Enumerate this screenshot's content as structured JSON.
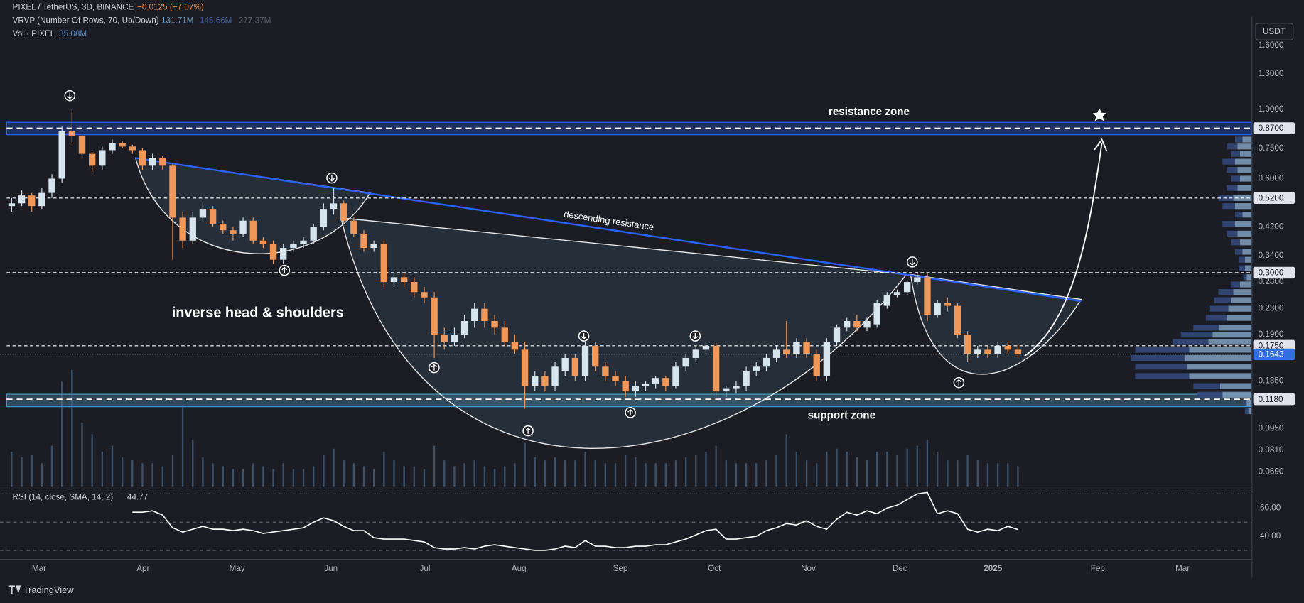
{
  "chart_data": {
    "type": "candlestick",
    "legend": {
      "symbol": "PIXEL / TetherUS, 3D, BINANCE",
      "change": "−0.0125 (−7.07%)",
      "vrvp": "VRVP (Number Of Rows, 70, Up/Down)",
      "vrvp_values": [
        "131.71M",
        "145.66M",
        "277.37M"
      ],
      "vol": "Vol · PIXEL",
      "vol_value": "35.08M"
    },
    "currency": "USDT",
    "log_scale": true,
    "ylim": [
      0.062,
      1.98
    ],
    "yticks": [
      {
        "value": 1.6,
        "label": "1.6000"
      },
      {
        "value": 1.3,
        "label": "1.3000"
      },
      {
        "value": 1.0,
        "label": "1.0000"
      },
      {
        "value": 0.75,
        "label": "0.7500"
      },
      {
        "value": 0.6,
        "label": "0.6000"
      },
      {
        "value": 0.42,
        "label": "0.4200"
      },
      {
        "value": 0.34,
        "label": "0.3400"
      },
      {
        "value": 0.28,
        "label": "0.2800"
      },
      {
        "value": 0.23,
        "label": "0.2300"
      },
      {
        "value": 0.19,
        "label": "0.1900"
      },
      {
        "value": 0.135,
        "label": "0.1350"
      },
      {
        "value": 0.095,
        "label": "0.0950"
      },
      {
        "value": 0.081,
        "label": "0.0810"
      },
      {
        "value": 0.069,
        "label": "0.0690"
      }
    ],
    "levels": [
      {
        "value": 0.87,
        "label": "0.8700"
      },
      {
        "value": 0.52,
        "label": "0.5200"
      },
      {
        "value": 0.3,
        "label": "0.3000"
      },
      {
        "value": 0.175,
        "label": "0.1750"
      },
      {
        "value": 0.118,
        "label": "0.1180"
      }
    ],
    "last_price": {
      "value": 0.1643,
      "label": "0.1643"
    },
    "up_color": "#d6e4ee",
    "down_color": "#f0975a",
    "volume_color": "#5a7aa0",
    "open": [
      0.49,
      0.5,
      0.53,
      0.49,
      0.54,
      0.6,
      0.85,
      0.82,
      0.72,
      0.66,
      0.74,
      0.78,
      0.76,
      0.74,
      0.66,
      0.7,
      0.66,
      0.45,
      0.38,
      0.45,
      0.48,
      0.43,
      0.41,
      0.4,
      0.44,
      0.38,
      0.37,
      0.33,
      0.36,
      0.37,
      0.38,
      0.42,
      0.48,
      0.5,
      0.44,
      0.4,
      0.36,
      0.37,
      0.28,
      0.29,
      0.28,
      0.26,
      0.25,
      0.19,
      0.18,
      0.19,
      0.21,
      0.23,
      0.21,
      0.2,
      0.18,
      0.17,
      0.13,
      0.14,
      0.13,
      0.145,
      0.16,
      0.14,
      0.175,
      0.15,
      0.14,
      0.135,
      0.125,
      0.13,
      0.132,
      0.138,
      0.13,
      0.15,
      0.16,
      0.17,
      0.175,
      0.125,
      0.128,
      0.13,
      0.145,
      0.15,
      0.16,
      0.17,
      0.165,
      0.18,
      0.165,
      0.14,
      0.18,
      0.2,
      0.21,
      0.2,
      0.205,
      0.235,
      0.255,
      0.26,
      0.28,
      0.29,
      0.22,
      0.24,
      0.235,
      0.19,
      0.165,
      0.17,
      0.165,
      0.175,
      0.17
    ],
    "high": [
      0.52,
      0.55,
      0.54,
      0.56,
      0.62,
      0.88,
      1.0,
      0.84,
      0.73,
      0.76,
      0.8,
      0.79,
      0.77,
      0.75,
      0.72,
      0.71,
      0.67,
      0.47,
      0.47,
      0.5,
      0.49,
      0.44,
      0.42,
      0.45,
      0.45,
      0.39,
      0.38,
      0.37,
      0.38,
      0.39,
      0.43,
      0.5,
      0.56,
      0.51,
      0.45,
      0.41,
      0.38,
      0.38,
      0.3,
      0.3,
      0.29,
      0.27,
      0.26,
      0.2,
      0.2,
      0.22,
      0.24,
      0.24,
      0.22,
      0.21,
      0.19,
      0.18,
      0.145,
      0.145,
      0.155,
      0.165,
      0.165,
      0.18,
      0.18,
      0.155,
      0.145,
      0.14,
      0.135,
      0.135,
      0.14,
      0.14,
      0.155,
      0.165,
      0.175,
      0.18,
      0.18,
      0.13,
      0.135,
      0.15,
      0.155,
      0.165,
      0.175,
      0.21,
      0.185,
      0.185,
      0.17,
      0.185,
      0.205,
      0.215,
      0.22,
      0.215,
      0.245,
      0.26,
      0.265,
      0.285,
      0.3,
      0.3,
      0.245,
      0.25,
      0.24,
      0.195,
      0.175,
      0.175,
      0.18,
      0.18,
      0.177
    ],
    "low": [
      0.47,
      0.49,
      0.47,
      0.48,
      0.52,
      0.58,
      0.78,
      0.7,
      0.63,
      0.64,
      0.72,
      0.75,
      0.72,
      0.64,
      0.64,
      0.64,
      0.33,
      0.36,
      0.37,
      0.44,
      0.42,
      0.4,
      0.38,
      0.39,
      0.37,
      0.36,
      0.32,
      0.32,
      0.35,
      0.36,
      0.37,
      0.41,
      0.46,
      0.43,
      0.39,
      0.35,
      0.35,
      0.27,
      0.27,
      0.27,
      0.25,
      0.24,
      0.16,
      0.17,
      0.175,
      0.185,
      0.2,
      0.2,
      0.19,
      0.175,
      0.165,
      0.11,
      0.125,
      0.125,
      0.125,
      0.14,
      0.135,
      0.135,
      0.145,
      0.135,
      0.13,
      0.12,
      0.12,
      0.125,
      0.128,
      0.125,
      0.128,
      0.145,
      0.155,
      0.165,
      0.12,
      0.12,
      0.123,
      0.125,
      0.14,
      0.145,
      0.155,
      0.16,
      0.16,
      0.16,
      0.135,
      0.135,
      0.175,
      0.195,
      0.195,
      0.195,
      0.2,
      0.23,
      0.25,
      0.255,
      0.275,
      0.21,
      0.215,
      0.225,
      0.185,
      0.155,
      0.16,
      0.16,
      0.16,
      0.165,
      0.16
    ],
    "close": [
      0.5,
      0.53,
      0.49,
      0.54,
      0.6,
      0.85,
      0.82,
      0.72,
      0.66,
      0.74,
      0.78,
      0.76,
      0.74,
      0.66,
      0.7,
      0.66,
      0.45,
      0.38,
      0.45,
      0.48,
      0.43,
      0.41,
      0.4,
      0.44,
      0.38,
      0.37,
      0.33,
      0.36,
      0.37,
      0.38,
      0.42,
      0.48,
      0.5,
      0.44,
      0.4,
      0.36,
      0.37,
      0.28,
      0.29,
      0.28,
      0.26,
      0.25,
      0.19,
      0.18,
      0.19,
      0.21,
      0.23,
      0.21,
      0.2,
      0.18,
      0.17,
      0.13,
      0.14,
      0.13,
      0.15,
      0.16,
      0.14,
      0.175,
      0.15,
      0.14,
      0.135,
      0.125,
      0.13,
      0.132,
      0.138,
      0.13,
      0.15,
      0.16,
      0.17,
      0.175,
      0.125,
      0.128,
      0.13,
      0.145,
      0.15,
      0.16,
      0.17,
      0.165,
      0.18,
      0.165,
      0.14,
      0.18,
      0.2,
      0.21,
      0.2,
      0.21,
      0.24,
      0.255,
      0.26,
      0.28,
      0.29,
      0.22,
      0.24,
      0.235,
      0.19,
      0.165,
      0.17,
      0.165,
      0.175,
      0.17,
      0.1643
    ],
    "volume": [
      60,
      50,
      55,
      40,
      70,
      180,
      200,
      110,
      90,
      60,
      70,
      50,
      45,
      40,
      40,
      35,
      55,
      140,
      80,
      50,
      40,
      35,
      30,
      30,
      40,
      35,
      30,
      40,
      30,
      30,
      35,
      55,
      65,
      45,
      40,
      35,
      30,
      60,
      45,
      35,
      35,
      30,
      70,
      45,
      35,
      40,
      45,
      35,
      30,
      35,
      40,
      75,
      50,
      45,
      50,
      45,
      45,
      60,
      45,
      40,
      40,
      55,
      50,
      40,
      40,
      40,
      45,
      50,
      55,
      60,
      70,
      45,
      40,
      40,
      40,
      45,
      55,
      90,
      60,
      45,
      40,
      60,
      65,
      60,
      50,
      45,
      60,
      60,
      55,
      65,
      70,
      80,
      60,
      45,
      45,
      55,
      45,
      40,
      40,
      40,
      35.08
    ],
    "volume_profile": {
      "levels": [
        0.8,
        0.76,
        0.72,
        0.68,
        0.64,
        0.6,
        0.56,
        0.52,
        0.49,
        0.46,
        0.43,
        0.4,
        0.375,
        0.35,
        0.33,
        0.31,
        0.29,
        0.275,
        0.26,
        0.245,
        0.23,
        0.215,
        0.2,
        0.19,
        0.18,
        0.17,
        0.16,
        0.15,
        0.14,
        0.13,
        0.122,
        0.115,
        0.108
      ],
      "up": [
        22,
        34,
        28,
        40,
        34,
        28,
        34,
        44,
        40,
        22,
        40,
        34,
        28,
        22,
        16,
        16,
        12,
        28,
        44,
        50,
        56,
        60,
        78,
        94,
        104,
        150,
        160,
        156,
        150,
        76,
        70,
        12,
        8
      ],
      "down": [
        18,
        26,
        22,
        30,
        26,
        22,
        26,
        36,
        30,
        18,
        30,
        26,
        22,
        18,
        14,
        14,
        8,
        22,
        36,
        40,
        44,
        50,
        62,
        76,
        86,
        130,
        130,
        124,
        130,
        64,
        60,
        8,
        8
      ],
      "up_color": "#7f9fc0",
      "down_color": "#34487a"
    },
    "annotations": [
      "resistance zone",
      "descending resistance",
      "inverse head & shoulders",
      "support zone"
    ],
    "time_labels": [
      "Mar",
      "Apr",
      "May",
      "Jun",
      "Jul",
      "Aug",
      "Sep",
      "Oct",
      "Nov",
      "Dec",
      "2025",
      "Feb",
      "Mar"
    ],
    "rsi": {
      "label": "RSI (14, close, SMA, 14, 2)",
      "value_label": "44.77",
      "color": "#ffffff",
      "ylim": [
        24,
        74
      ],
      "yticks": [
        {
          "value": 60,
          "label": "60.00"
        },
        {
          "value": 40,
          "label": "40.00"
        }
      ],
      "levels": [
        70,
        50,
        30
      ],
      "values": [
        null,
        null,
        null,
        null,
        null,
        null,
        null,
        null,
        null,
        null,
        null,
        null,
        57,
        57,
        58,
        55,
        46,
        43,
        45,
        47,
        45,
        45,
        44,
        45,
        44,
        42,
        43,
        44,
        45,
        46,
        50,
        53,
        51,
        47,
        44,
        44,
        39,
        38,
        38,
        38,
        37,
        36,
        32,
        31,
        31,
        32,
        31,
        33,
        34,
        33,
        32,
        31,
        30,
        30,
        31,
        33,
        32,
        37,
        33,
        33,
        32,
        32,
        33,
        33,
        34,
        34,
        36,
        38,
        41,
        44,
        45,
        38,
        38,
        39,
        40,
        44,
        46,
        49,
        48,
        51,
        47,
        45,
        52,
        57,
        55,
        58,
        56,
        60,
        62,
        66,
        70,
        71,
        56,
        58,
        56,
        45,
        43,
        45,
        44,
        47,
        44.77
      ]
    },
    "brand": "TradingView"
  }
}
